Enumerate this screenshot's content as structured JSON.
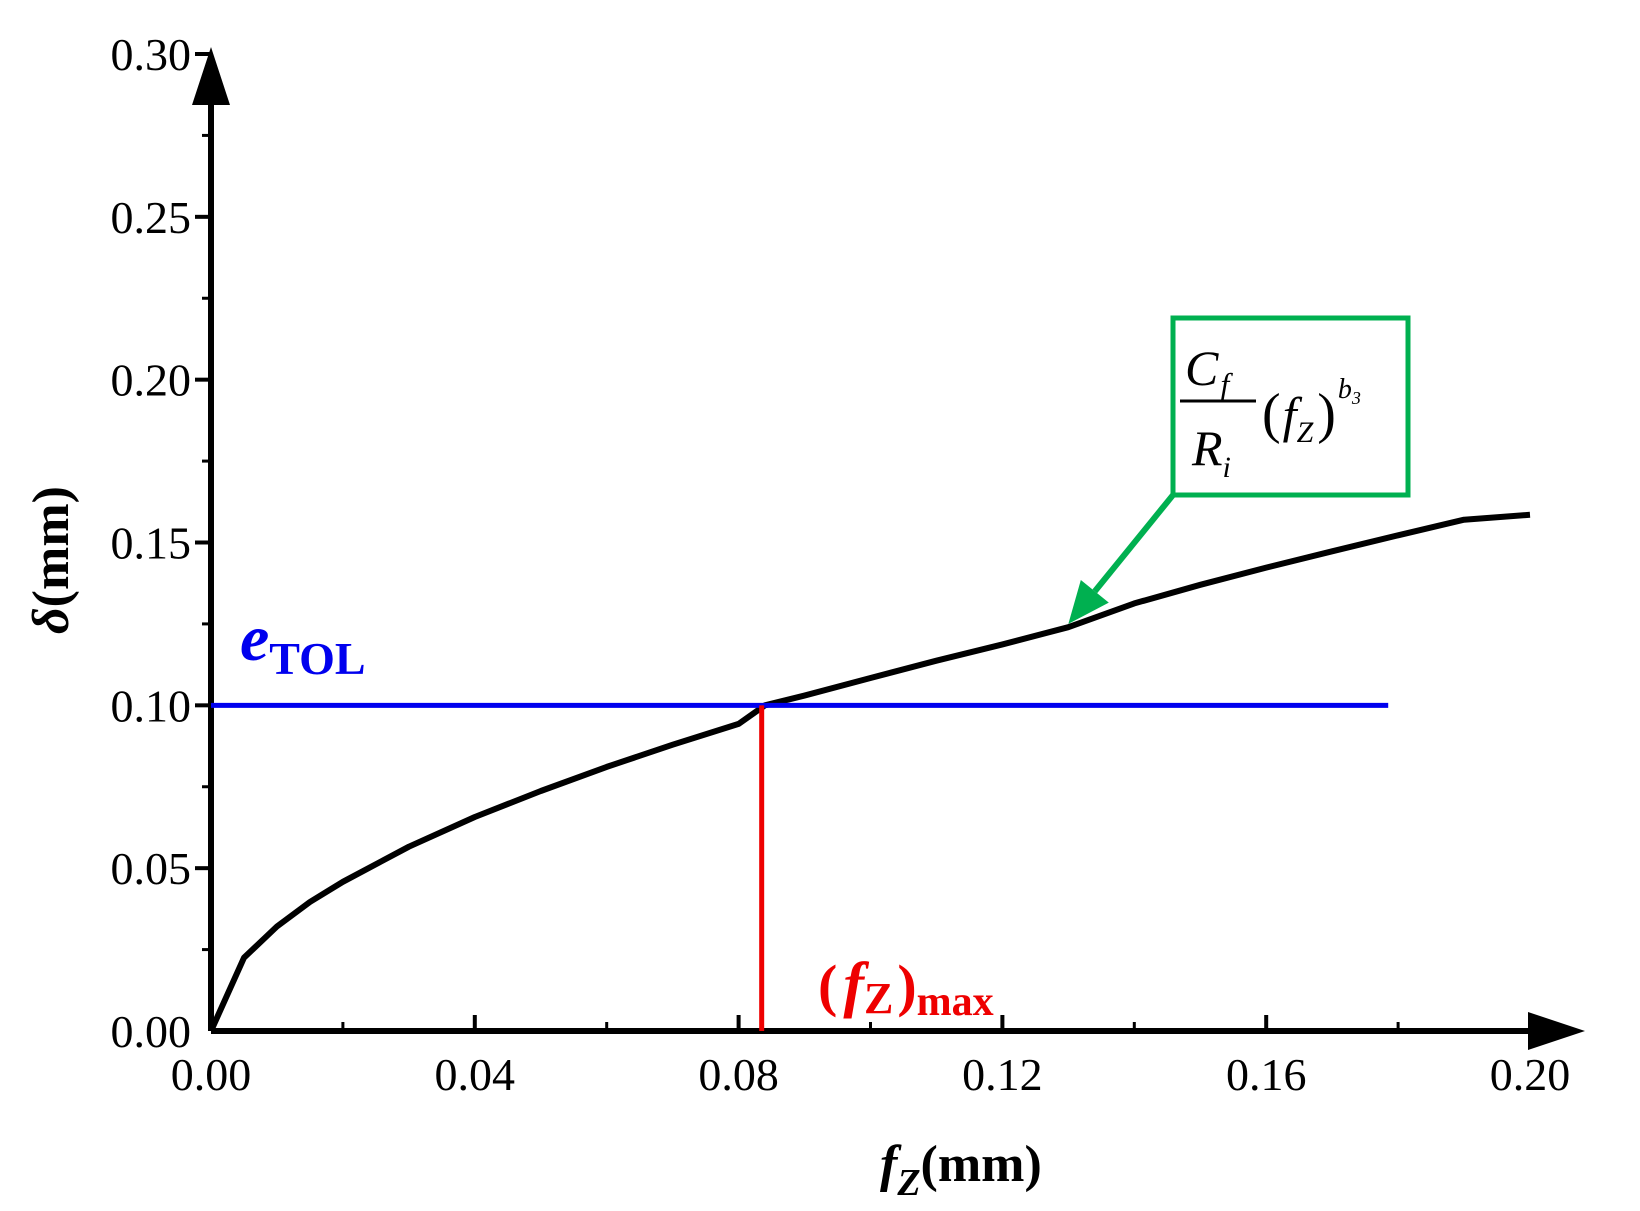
{
  "chart_data": {
    "type": "line",
    "xlabel": {
      "var": "f",
      "sub": "Z",
      "unit": "(mm)"
    },
    "ylabel": {
      "var": "δ",
      "unit": "(mm)"
    },
    "xlim": [
      0,
      0.2
    ],
    "ylim": [
      0,
      0.3
    ],
    "x_ticks": [
      "0.00",
      "0.04",
      "0.08",
      "0.12",
      "0.16",
      "0.20"
    ],
    "y_ticks": [
      "0.00",
      "0.05",
      "0.10",
      "0.15",
      "0.20",
      "0.25",
      "0.30"
    ],
    "grid": false,
    "series": [
      {
        "color": "#000000",
        "points": [
          [
            0.0,
            0.0
          ],
          [
            0.005,
            0.0225
          ],
          [
            0.01,
            0.0321
          ],
          [
            0.015,
            0.0396
          ],
          [
            0.02,
            0.0458
          ],
          [
            0.03,
            0.0566
          ],
          [
            0.04,
            0.0657
          ],
          [
            0.05,
            0.0737
          ],
          [
            0.06,
            0.0811
          ],
          [
            0.07,
            0.0879
          ],
          [
            0.08,
            0.0943
          ],
          [
            0.084,
            0.1
          ],
          [
            0.09,
            0.103
          ],
          [
            0.1,
            0.1084
          ],
          [
            0.11,
            0.1137
          ],
          [
            0.12,
            0.1187
          ],
          [
            0.13,
            0.124
          ],
          [
            0.14,
            0.1313
          ],
          [
            0.15,
            0.137
          ],
          [
            0.16,
            0.1423
          ],
          [
            0.17,
            0.1473
          ],
          [
            0.18,
            0.1522
          ],
          [
            0.19,
            0.157
          ],
          [
            0.2,
            0.1585
          ]
        ]
      }
    ],
    "annotations": {
      "etol": {
        "var": "e",
        "sub": "TOL",
        "y": 0.1,
        "x_range": [
          0,
          0.1785
        ],
        "color": "#0000ee"
      },
      "fzmax": {
        "open": "(",
        "var": "f",
        "sub": "Z",
        "close": ")",
        "sub2": "max",
        "x": 0.0835,
        "y_range": [
          0,
          0.1
        ],
        "color": "#ee0000"
      },
      "formula": {
        "num_var": "C",
        "num_sub": "f",
        "den_var": "R",
        "den_sub": "i",
        "lparen": "(",
        "base_var": "f",
        "base_sub": "Z",
        "rparen": ")",
        "exp_var": "b",
        "exp_sub": "3",
        "box_color": "#00b050",
        "arrow_tip": [
          0.13,
          0.125
        ]
      }
    }
  }
}
